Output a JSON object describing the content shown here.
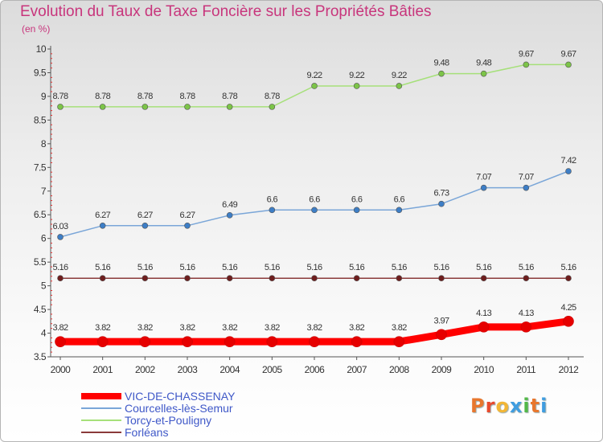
{
  "header": {
    "title": "Evolution du Taux de Taxe Foncière sur les Propriétés Bâties",
    "unit": "(en %)"
  },
  "logo": {
    "text": "Proxiti",
    "colors": [
      "#e8772e",
      "#e84a2e",
      "#f2b636",
      "#3f9de0",
      "#52b848",
      "#e8772e",
      "#3f9de0"
    ]
  },
  "chart_data": {
    "type": "line",
    "x": [
      "2000",
      "2001",
      "2002",
      "2003",
      "2004",
      "2005",
      "2006",
      "2007",
      "2008",
      "2009",
      "2010",
      "2011",
      "2012"
    ],
    "ylim": [
      3.5,
      10
    ],
    "yticks": [
      "3.5",
      "4",
      "4.5",
      "5",
      "5.5",
      "6",
      "6.5",
      "7",
      "7.5",
      "8",
      "8.5",
      "9",
      "9.5",
      "10"
    ],
    "grid": false,
    "legend_position": "bottom-left",
    "series": [
      {
        "name": "VIC-DE-CHASSENAY",
        "color": "#ff0000",
        "marker": "#e60000",
        "values": [
          3.82,
          3.82,
          3.82,
          3.82,
          3.82,
          3.82,
          3.82,
          3.82,
          3.82,
          3.97,
          4.13,
          4.13,
          4.25
        ],
        "labels": [
          "3.82",
          "3.82",
          "3.82",
          "3.82",
          "3.82",
          "3.82",
          "3.82",
          "3.82",
          "3.82",
          "3.97",
          "4.13",
          "4.13",
          "4.25"
        ]
      },
      {
        "name": "Courcelles-lès-Semur",
        "color": "#7aa6d8",
        "marker": "#3d7ec6",
        "values": [
          6.03,
          6.27,
          6.27,
          6.27,
          6.49,
          6.6,
          6.6,
          6.6,
          6.6,
          6.73,
          7.07,
          7.07,
          7.42
        ],
        "labels": [
          "6.03",
          "6.27",
          "6.27",
          "6.27",
          "6.49",
          "6.6",
          "6.6",
          "6.6",
          "6.6",
          "6.73",
          "7.07",
          "7.07",
          "7.42"
        ]
      },
      {
        "name": "Torcy-et-Pouligny",
        "color": "#a6e07a",
        "marker": "#7cc448",
        "values": [
          8.78,
          8.78,
          8.78,
          8.78,
          8.78,
          8.78,
          9.22,
          9.22,
          9.22,
          9.48,
          9.48,
          9.67,
          9.67
        ],
        "labels": [
          "8.78",
          "8.78",
          "8.78",
          "8.78",
          "8.78",
          "8.78",
          "9.22",
          "9.22",
          "9.22",
          "9.48",
          "9.48",
          "9.67",
          "9.67"
        ]
      },
      {
        "name": "Forléans",
        "color": "#8a3a3a",
        "marker": "#6e1e1e",
        "values": [
          5.16,
          5.16,
          5.16,
          5.16,
          5.16,
          5.16,
          5.16,
          5.16,
          5.16,
          5.16,
          5.16,
          5.16,
          5.16
        ],
        "labels": [
          "5.16",
          "5.16",
          "5.16",
          "5.16",
          "5.16",
          "5.16",
          "5.16",
          "5.16",
          "5.16",
          "5.16",
          "5.16",
          "5.16",
          "5.16"
        ]
      }
    ]
  }
}
